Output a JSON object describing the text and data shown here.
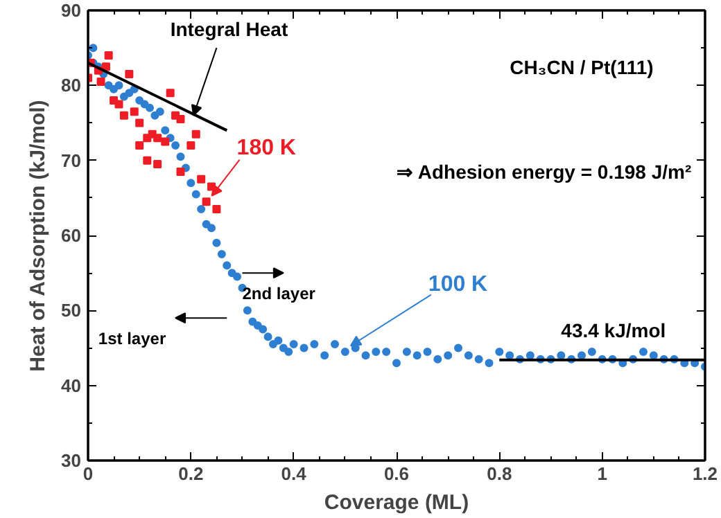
{
  "chart_data": {
    "type": "scatter",
    "xlabel": "Coverage (ML)",
    "ylabel": "Heat of Adsorption (kJ/mol)",
    "xlim": [
      0,
      1.2
    ],
    "ylim": [
      30,
      90
    ],
    "xticks": [
      0,
      0.2,
      0.4,
      0.6,
      0.8,
      1,
      1.2
    ],
    "yticks": [
      30,
      40,
      50,
      60,
      70,
      80,
      90
    ],
    "grid": false,
    "series": [
      {
        "name": "100 K",
        "color": "#2e7fd1",
        "marker": "circle",
        "x": [
          0.0,
          0.01,
          0.01,
          0.02,
          0.03,
          0.04,
          0.05,
          0.06,
          0.07,
          0.08,
          0.09,
          0.1,
          0.11,
          0.12,
          0.13,
          0.14,
          0.15,
          0.16,
          0.17,
          0.18,
          0.19,
          0.2,
          0.21,
          0.22,
          0.23,
          0.24,
          0.25,
          0.26,
          0.27,
          0.28,
          0.29,
          0.3,
          0.31,
          0.32,
          0.33,
          0.34,
          0.35,
          0.36,
          0.37,
          0.38,
          0.39,
          0.4,
          0.42,
          0.44,
          0.46,
          0.48,
          0.5,
          0.52,
          0.54,
          0.56,
          0.58,
          0.6,
          0.62,
          0.64,
          0.66,
          0.68,
          0.7,
          0.72,
          0.74,
          0.76,
          0.78,
          0.8,
          0.82,
          0.84,
          0.86,
          0.88,
          0.9,
          0.92,
          0.94,
          0.96,
          0.98,
          1.0,
          1.02,
          1.04,
          1.06,
          1.08,
          1.1,
          1.12,
          1.14,
          1.16,
          1.18,
          1.2
        ],
        "values": [
          84,
          85,
          83,
          82.5,
          81.5,
          80,
          79.5,
          80,
          78.5,
          79,
          79.5,
          78,
          77.5,
          77,
          76,
          76.5,
          74,
          73,
          72,
          70.5,
          69,
          67,
          65.5,
          63.5,
          61.5,
          61,
          59,
          57.5,
          56,
          55,
          54.5,
          53,
          50,
          48.5,
          48,
          47.5,
          46.5,
          45.5,
          46,
          45,
          44.5,
          45.5,
          45,
          45.5,
          44,
          45.5,
          44.5,
          45,
          44,
          44.5,
          44.5,
          43,
          44.5,
          44,
          44.5,
          43.5,
          44,
          45,
          44,
          43.5,
          43,
          44.5,
          44,
          43.5,
          44,
          43.5,
          43.5,
          44,
          43.5,
          44,
          44.5,
          43.5,
          43.5,
          43,
          43.5,
          44.5,
          44,
          43.5,
          43.5,
          43,
          43,
          42.5
        ]
      },
      {
        "name": "180 K",
        "color": "#ee1c25",
        "marker": "square",
        "x": [
          0.0,
          0.005,
          0.02,
          0.025,
          0.035,
          0.04,
          0.05,
          0.06,
          0.07,
          0.08,
          0.09,
          0.1,
          0.1,
          0.115,
          0.125,
          0.115,
          0.135,
          0.15,
          0.135,
          0.16,
          0.17,
          0.18,
          0.18,
          0.2,
          0.21,
          0.22,
          0.23,
          0.24,
          0.25
        ],
        "values": [
          81,
          83,
          82,
          80.5,
          82.5,
          84,
          78,
          77.5,
          76,
          81.5,
          76.5,
          75,
          72,
          73,
          73.5,
          70,
          73,
          72.5,
          69.5,
          79,
          76,
          75.5,
          68.5,
          72,
          73.5,
          67.5,
          64.5,
          66.5,
          63.5
        ]
      },
      {
        "type": "line",
        "color": "#000000",
        "x": [
          0.0,
          0.27
        ],
        "values": [
          83,
          74
        ]
      },
      {
        "type": "line",
        "color": "#000000",
        "x": [
          0.8,
          1.2
        ],
        "values": [
          43.4,
          43.4
        ]
      }
    ],
    "annotations": [
      {
        "text": "Integral Heat",
        "x": 0.2,
        "y": 75.5
      },
      "CH₃CN / Pt(111)",
      "⇒ Adhesion energy = 0.198 J/m²",
      "2nd layer",
      "1st layer",
      {
        "text": "43.4 kJ/mol",
        "x": 1.0,
        "y": 43.4
      }
    ]
  }
}
